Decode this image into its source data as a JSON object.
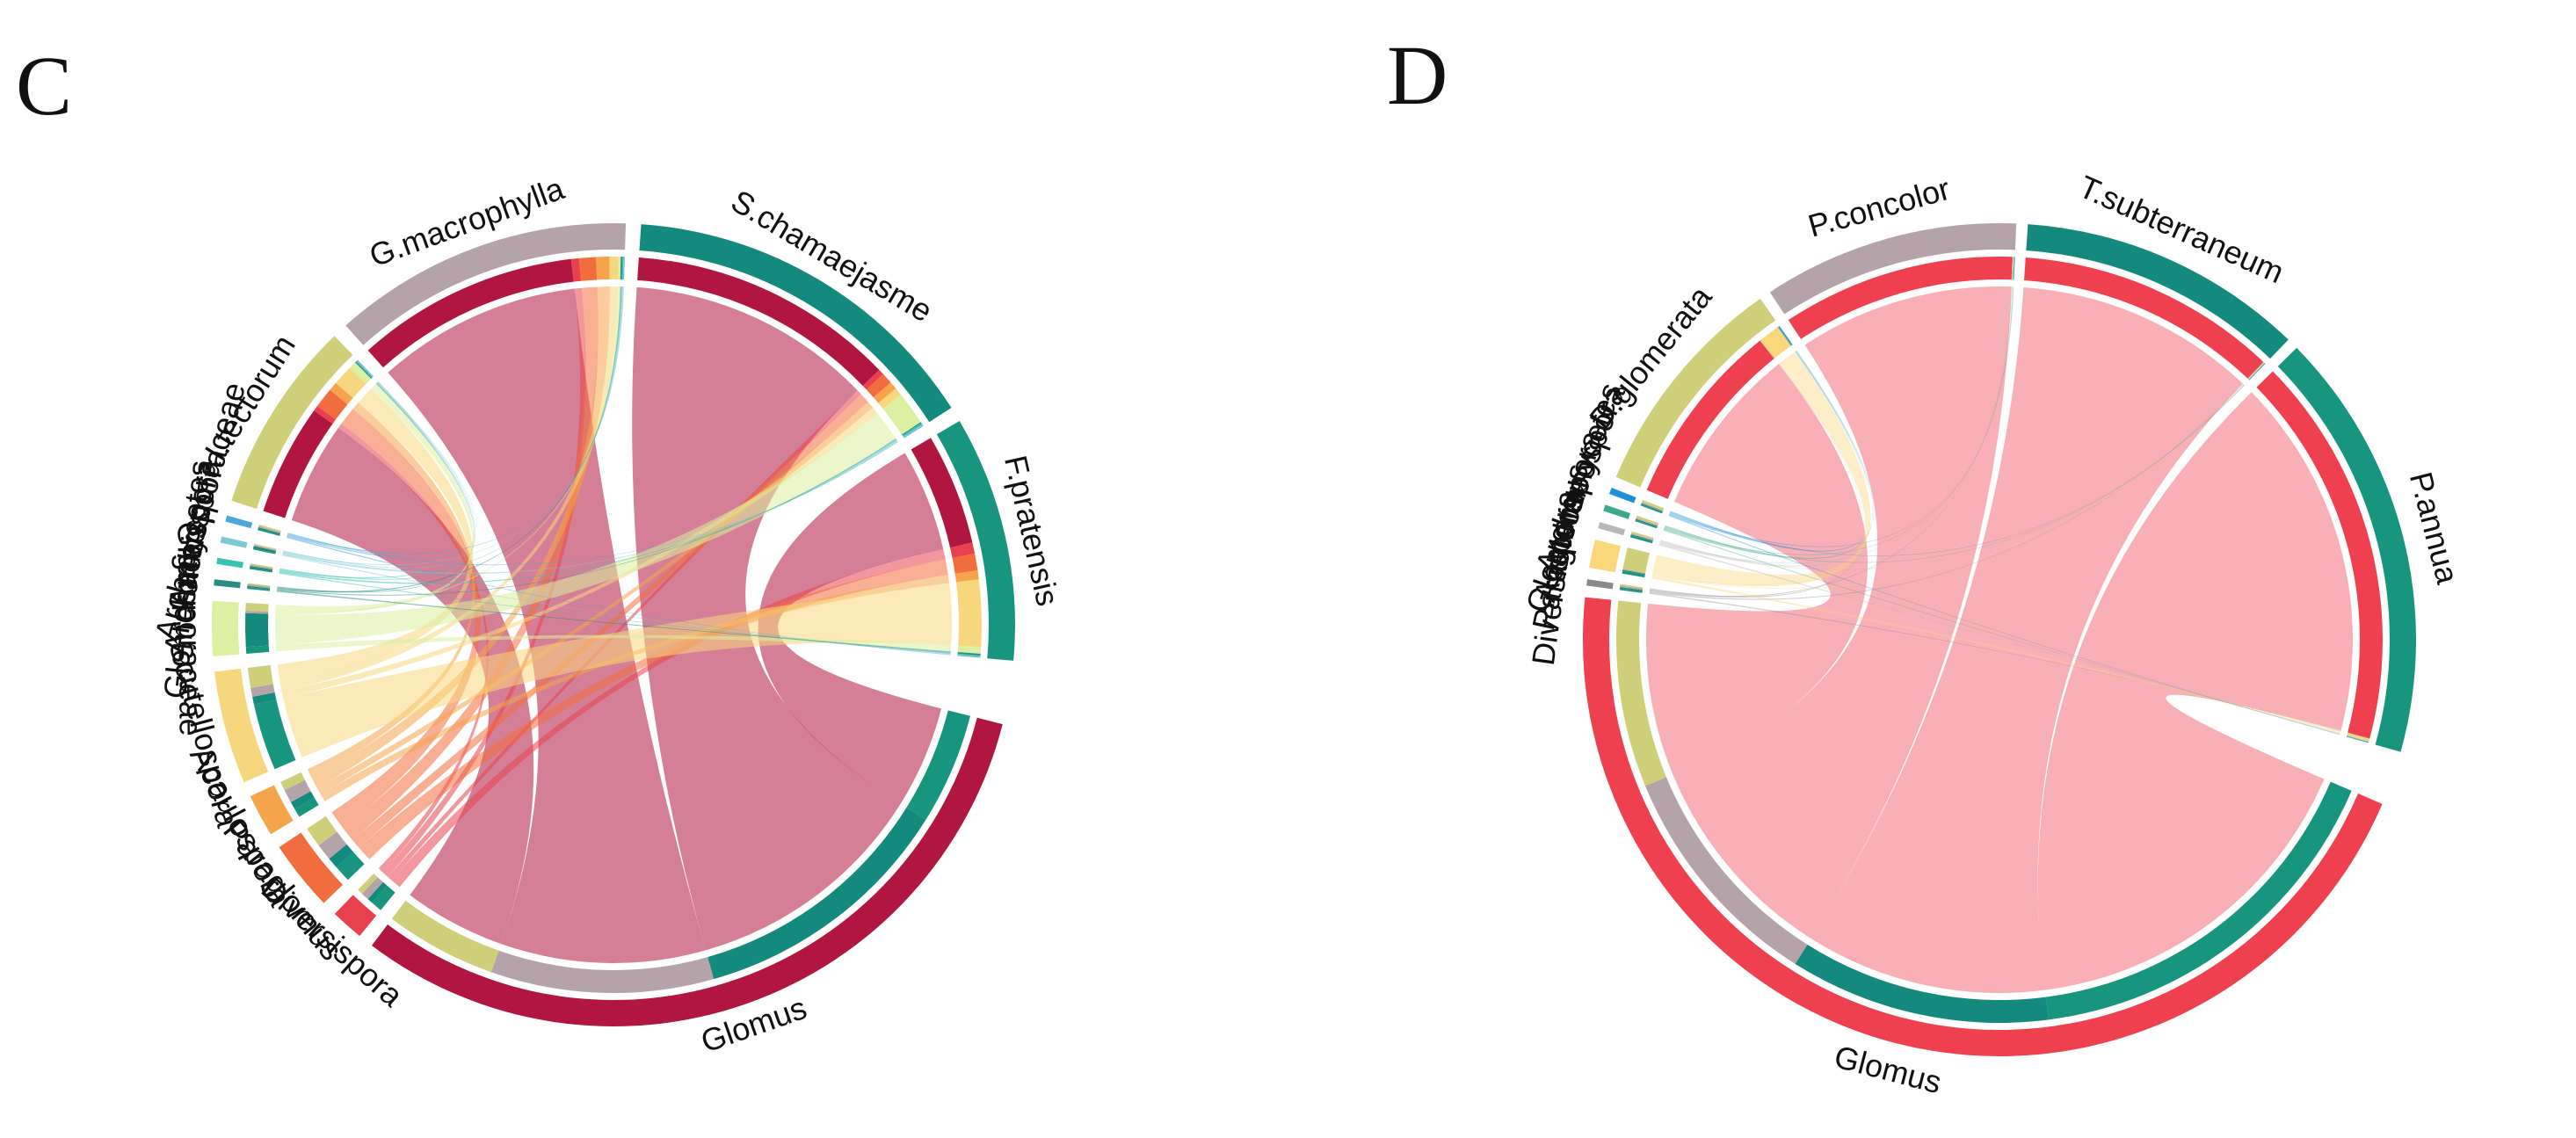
{
  "chart_data": [
    {
      "type": "chord",
      "panel": "C",
      "palette": {
        "Glomus": "#b0163f",
        "Diversispora": "#e8414d",
        "Paraglomus": "#f26d3d",
        "Acaulospora": "#f6a44b",
        "Scutellospora": "#f7d77e",
        "Gigasporaceae": "#dbf0a0",
        "Glomeromycetes": "#2a8c82",
        "Archaeospora": "#39c2b4",
        "Ambispora": "#7ec8d8",
        "Archaeosporaceae": "#4aa8d8",
        "I.tectorum": "#cfcf7a",
        "G.macrophylla": "#b5a3aa",
        "S.chamaejasme": "#148a7e",
        "F.pratensis": "#18957e"
      },
      "sectors": [
        {
          "name": "I.tectorum",
          "group": "host"
        },
        {
          "name": "G.macrophylla",
          "group": "host"
        },
        {
          "name": "S.chamaejasme",
          "group": "host"
        },
        {
          "name": "F.pratensis",
          "group": "host"
        },
        {
          "name": "Glomus",
          "group": "taxon"
        },
        {
          "name": "Diversispora",
          "group": "taxon"
        },
        {
          "name": "Paraglomus",
          "group": "taxon"
        },
        {
          "name": "Acaulospora",
          "group": "taxon"
        },
        {
          "name": "Scutellospora",
          "group": "taxon"
        },
        {
          "name": "Gigasporaceae",
          "group": "taxon"
        },
        {
          "name": "Glomeromycetes",
          "group": "taxon"
        },
        {
          "name": "Archaeospora",
          "group": "taxon"
        },
        {
          "name": "Ambispora",
          "group": "taxon"
        },
        {
          "name": "Archaeosporaceae",
          "group": "taxon"
        }
      ],
      "hosts": [
        "I.tectorum",
        "G.macrophylla",
        "S.chamaejasme",
        "F.pratensis"
      ],
      "links": [
        {
          "from": "Glomus",
          "to": [
            "F.pratensis",
            "S.chamaejasme",
            "G.macrophylla",
            "I.tectorum"
          ],
          "values": [
            10,
            24,
            20,
            10
          ]
        },
        {
          "from": "Diversispora",
          "to": [
            "F.pratensis",
            "S.chamaejasme",
            "G.macrophylla",
            "I.tectorum"
          ],
          "values": [
            1.0,
            0.5,
            0.7,
            0.5
          ]
        },
        {
          "from": "Paraglomus",
          "to": [
            "F.pratensis",
            "S.chamaejasme",
            "G.macrophylla",
            "I.tectorum"
          ],
          "values": [
            1.5,
            1.0,
            1.5,
            1.8
          ]
        },
        {
          "from": "Acaulospora",
          "to": [
            "F.pratensis",
            "S.chamaejasme",
            "G.macrophylla",
            "I.tectorum"
          ],
          "values": [
            0.8,
            0.7,
            1.2,
            0.8
          ]
        },
        {
          "from": "Scutellospora",
          "to": [
            "F.pratensis",
            "S.chamaejasme",
            "G.macrophylla",
            "I.tectorum"
          ],
          "values": [
            6.0,
            0.7,
            0.8,
            1.8
          ]
        },
        {
          "from": "Gigasporaceae",
          "to": [
            "F.pratensis",
            "S.chamaejasme",
            "G.macrophylla",
            "I.tectorum"
          ],
          "values": [
            0.6,
            3.0,
            0.2,
            0.7
          ]
        },
        {
          "from": "Glomeromycetes",
          "to": [
            "F.pratensis",
            "S.chamaejasme",
            "G.macrophylla",
            "I.tectorum"
          ],
          "values": [
            0.15,
            0.1,
            0.15,
            0.1
          ]
        },
        {
          "from": "Archaeospora",
          "to": [
            "F.pratensis",
            "S.chamaejasme",
            "G.macrophylla",
            "I.tectorum"
          ],
          "values": [
            0.1,
            0.15,
            0.1,
            0.1
          ]
        },
        {
          "from": "Ambispora",
          "to": [
            "F.pratensis",
            "S.chamaejasme",
            "G.macrophylla",
            "I.tectorum"
          ],
          "values": [
            0.05,
            0.1,
            0.05,
            0.05
          ]
        },
        {
          "from": "Archaeosporaceae",
          "to": [
            "F.pratensis",
            "S.chamaejasme",
            "G.macrophylla",
            "I.tectorum"
          ],
          "values": [
            0.05,
            0.05,
            0.05,
            0.05
          ]
        }
      ]
    },
    {
      "type": "chord",
      "panel": "D",
      "palette": {
        "Glomus": "#ef4050",
        "Diversispora": "#8a8a8a",
        "Paraglomus": "#fbd77c",
        "Acaulospora": "#b8b8b8",
        "Glomeromycetes": "#3aaa8a",
        "Archaeospora": "#1f8fd8",
        "D.glomerata": "#cfcf7a",
        "P.concolor": "#b5a3aa",
        "T.subterraneum": "#148a7e",
        "P.annua": "#18957e"
      },
      "sectors": [
        {
          "name": "D.glomerata",
          "group": "host"
        },
        {
          "name": "P.concolor",
          "group": "host"
        },
        {
          "name": "T.subterraneum",
          "group": "host"
        },
        {
          "name": "P.annua",
          "group": "host"
        },
        {
          "name": "Glomus",
          "group": "taxon"
        },
        {
          "name": "Diversispora",
          "group": "taxon"
        },
        {
          "name": "Paraglomus",
          "group": "taxon"
        },
        {
          "name": "Acaulospora",
          "group": "taxon"
        },
        {
          "name": "Glomeromycetes",
          "group": "taxon"
        },
        {
          "name": "Archaeospora",
          "group": "taxon"
        }
      ],
      "hosts": [
        "D.glomerata",
        "P.concolor",
        "T.subterraneum",
        "P.annua"
      ],
      "links": [
        {
          "from": "Glomus",
          "to": [
            "P.annua",
            "T.subterraneum",
            "P.concolor",
            "D.glomerata"
          ],
          "values": [
            42,
            28,
            25,
            20
          ]
        },
        {
          "from": "Diversispora",
          "to": [
            "P.annua",
            "T.subterraneum",
            "P.concolor",
            "D.glomerata"
          ],
          "values": [
            0.05,
            0.05,
            0.05,
            0.05
          ]
        },
        {
          "from": "Paraglomus",
          "to": [
            "P.annua",
            "T.subterraneum",
            "P.concolor",
            "D.glomerata"
          ],
          "values": [
            0.3,
            0.1,
            0.1,
            2.3
          ]
        },
        {
          "from": "Acaulospora",
          "to": [
            "P.annua",
            "T.subterraneum",
            "P.concolor",
            "D.glomerata"
          ],
          "values": [
            0.05,
            0.03,
            0.03,
            0.05
          ]
        },
        {
          "from": "Glomeromycetes",
          "to": [
            "P.annua",
            "T.subterraneum",
            "P.concolor",
            "D.glomerata"
          ],
          "values": [
            0.05,
            0.05,
            0.05,
            0.1
          ]
        },
        {
          "from": "Archaeospora",
          "to": [
            "P.annua",
            "T.subterraneum",
            "P.concolor",
            "D.glomerata"
          ],
          "values": [
            0.05,
            0.05,
            0.05,
            0.1
          ]
        }
      ]
    }
  ]
}
